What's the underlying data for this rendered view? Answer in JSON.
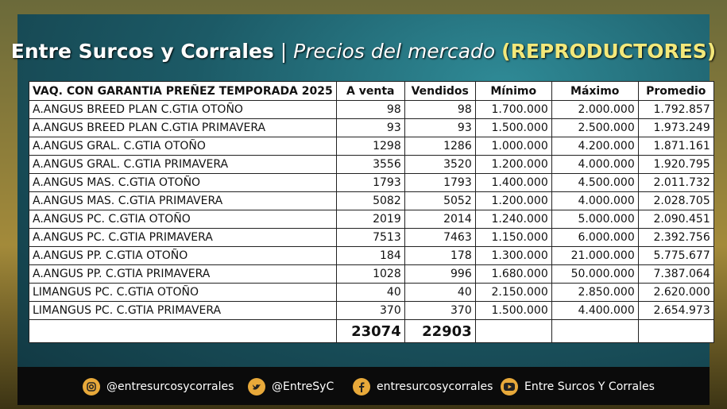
{
  "header": {
    "brand": "Entre Surcos y Corrales",
    "separator": "|",
    "subtitle": "Precios del mercado",
    "tag": "(REPRODUCTORES)"
  },
  "table": {
    "columns": [
      "VAQ. CON GARANTIA PREÑEZ  TEMPORADA 2025",
      "A venta",
      "Vendidos",
      "Mínimo",
      "Máximo",
      "Promedio"
    ],
    "rows": [
      [
        "A.ANGUS BREED PLAN C.GTIA OTOÑO",
        "98",
        "98",
        "1.700.000",
        "2.000.000",
        "1.792.857"
      ],
      [
        "A.ANGUS BREED PLAN C.GTIA PRIMAVERA",
        "93",
        "93",
        "1.500.000",
        "2.500.000",
        "1.973.249"
      ],
      [
        "A.ANGUS GRAL. C.GTIA OTOÑO",
        "1298",
        "1286",
        "1.000.000",
        "4.200.000",
        "1.871.161"
      ],
      [
        "A.ANGUS GRAL. C.GTIA PRIMAVERA",
        "3556",
        "3520",
        "1.200.000",
        "4.000.000",
        "1.920.795"
      ],
      [
        "A.ANGUS MAS. C.GTIA OTOÑO",
        "1793",
        "1793",
        "1.400.000",
        "4.500.000",
        "2.011.732"
      ],
      [
        "A.ANGUS MAS. C.GTIA PRIMAVERA",
        "5082",
        "5052",
        "1.200.000",
        "4.000.000",
        "2.028.705"
      ],
      [
        "A.ANGUS PC. C.GTIA OTOÑO",
        "2019",
        "2014",
        "1.240.000",
        "5.000.000",
        "2.090.451"
      ],
      [
        "A.ANGUS PC. C.GTIA PRIMAVERA",
        "7513",
        "7463",
        "1.150.000",
        "6.000.000",
        "2.392.756"
      ],
      [
        "A.ANGUS PP. C.GTIA OTOÑO",
        "184",
        "178",
        "1.300.000",
        "21.000.000",
        "5.775.677"
      ],
      [
        "A.ANGUS PP. C.GTIA PRIMAVERA",
        "1028",
        "996",
        "1.680.000",
        "50.000.000",
        "7.387.064"
      ],
      [
        "LIMANGUS PC. C.GTIA OTOÑO",
        "40",
        "40",
        "2.150.000",
        "2.850.000",
        "2.620.000"
      ],
      [
        "LIMANGUS PC. C.GTIA PRIMAVERA",
        "370",
        "370",
        "1.500.000",
        "4.400.000",
        "2.654.973"
      ]
    ],
    "totals": [
      "23074",
      "22903"
    ]
  },
  "footer": {
    "instagram": "@entresurcosycorrales",
    "twitter": "@EntreSyC",
    "facebook": "entresurcosycorrales",
    "youtube": "Entre Surcos Y Corrales"
  }
}
